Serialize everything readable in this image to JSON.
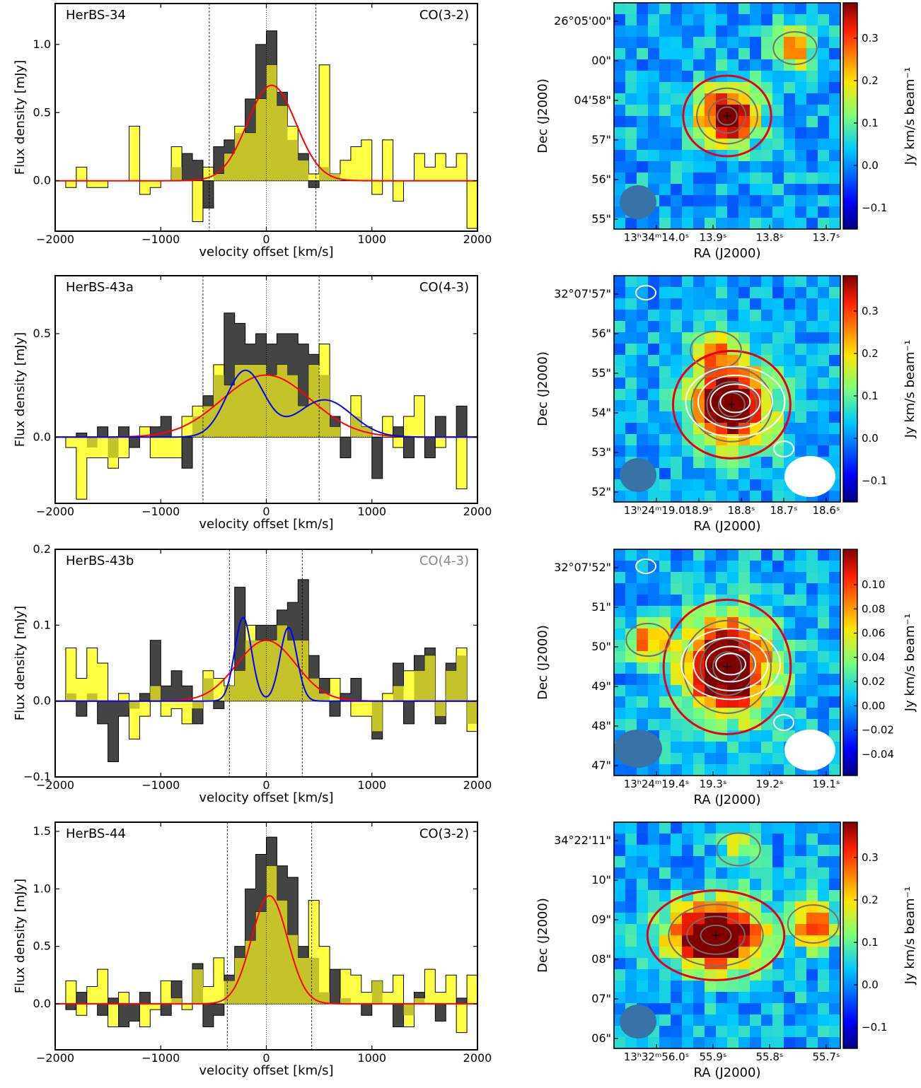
{
  "xlabel": "velocity offset [km/s]",
  "ylabel": "Flux density [mJy]",
  "map_xlabel": "RA (J2000)",
  "map_ylabel": "Dec (J2000)",
  "cbar_label": "Jy km/s beam⁻¹",
  "colors": {
    "observed": "#444444",
    "fill": "#ffff44",
    "overlap": "#c4c42a",
    "single_fit": "#ff0000",
    "double_fit": "#0000ff",
    "map_contour": "#707070",
    "outer_contour": "#e3001b",
    "continuum_contour": "#ffffff"
  },
  "chart_data": [
    {
      "type": "line",
      "source": "HerBS-34",
      "line": "CO(3-2)",
      "line_color": "#000000",
      "xlim": [
        -2000,
        2000
      ],
      "ylim": [
        -0.37,
        1.3
      ],
      "xticks": [
        -2000,
        -1000,
        0,
        1000,
        2000
      ],
      "xtick_labels": [
        "−2000",
        "−1000",
        "0",
        "1000",
        "2000"
      ],
      "yticks": [
        0.0,
        0.5,
        1.0
      ],
      "ytick_labels": [
        "0.0",
        "0.5",
        "1.0"
      ],
      "vlines": [
        -540,
        0,
        470
      ],
      "single_fit": {
        "amp": 0.7,
        "mu": 50,
        "sigma": 230
      },
      "observed": {
        "x": [
          -2000,
          -1900,
          -1800,
          -1700,
          -1600,
          -1500,
          -1400,
          -1300,
          -1200,
          -1100,
          -1000,
          -900,
          -800,
          -700,
          -600,
          -500,
          -400,
          -300,
          -200,
          -100,
          0,
          100,
          200,
          300,
          400,
          500,
          600,
          700,
          800,
          900,
          1000,
          1100,
          1200,
          1300,
          1400,
          1500,
          1600,
          1700,
          1800,
          1900,
          2000
        ],
        "y": [
          0.0,
          0.0,
          0.0,
          0.0,
          0.0,
          0.0,
          0.0,
          0.0,
          0.0,
          0.0,
          0.0,
          0.1,
          0.2,
          0.15,
          -0.2,
          0.25,
          0.3,
          0.35,
          0.6,
          1.0,
          1.1,
          0.65,
          0.3,
          0.2,
          -0.05,
          0.1,
          0.05,
          0.0,
          0.0,
          0.0,
          0.0,
          0.0,
          0.0,
          0.0,
          0.0,
          0.0,
          0.0,
          0.0,
          0.0,
          0.0,
          0.0
        ]
      },
      "fill": {
        "x": [
          -2000,
          -1900,
          -1800,
          -1700,
          -1600,
          -1500,
          -1400,
          -1300,
          -1200,
          -1100,
          -1000,
          -900,
          -800,
          -700,
          -600,
          -500,
          -400,
          -300,
          -200,
          -100,
          0,
          100,
          200,
          300,
          400,
          500,
          600,
          700,
          800,
          900,
          1000,
          1100,
          1200,
          1300,
          1400,
          1500,
          1600,
          1700,
          1800,
          1900,
          2000
        ],
        "y": [
          0.0,
          -0.05,
          0.1,
          -0.05,
          -0.05,
          0.0,
          0.0,
          0.4,
          -0.1,
          -0.05,
          0.0,
          0.25,
          0.0,
          -0.3,
          0.1,
          0.05,
          0.2,
          0.4,
          0.35,
          0.6,
          0.85,
          0.55,
          0.4,
          0.15,
          0.05,
          0.85,
          0.05,
          0.15,
          0.25,
          0.3,
          -0.1,
          0.3,
          -0.15,
          0.0,
          0.2,
          0.1,
          0.2,
          0.1,
          0.2,
          -0.35,
          0.0
        ]
      },
      "map": {
        "yticks": [
          "26°05'00\"",
          "00\"",
          "04'58\"",
          "57\"",
          "56\"",
          "55\""
        ],
        "xticks": [
          "13ʰ34ᵐ14.0ˢ",
          "13.9ˢ",
          "13.8ˢ",
          "13.7ˢ"
        ],
        "cbar_ticks": [
          "0.3",
          "0.2",
          "0.1",
          "0.0",
          "−0.1"
        ],
        "white_beam": false,
        "white_contours": false
      }
    },
    {
      "type": "line",
      "source": "HerBS-43a",
      "line": "CO(4-3)",
      "line_color": "#000000",
      "xlim": [
        -2000,
        2000
      ],
      "ylim": [
        -0.32,
        0.78
      ],
      "xticks": [
        -2000,
        -1000,
        0,
        1000,
        2000
      ],
      "xtick_labels": [
        "−2000",
        "−1000",
        "0",
        "1000",
        "2000"
      ],
      "yticks": [
        0.0,
        0.5
      ],
      "ytick_labels": [
        "0.0",
        "0.5"
      ],
      "vlines": [
        -600,
        0,
        500
      ],
      "single_fit": {
        "amp": 0.3,
        "mu": 0,
        "sigma": 420
      },
      "double_fit": [
        {
          "amp": 0.32,
          "mu": -200,
          "sigma": 180
        },
        {
          "amp": 0.18,
          "mu": 550,
          "sigma": 260
        }
      ],
      "observed": {
        "x": [
          -2000,
          -1900,
          -1800,
          -1700,
          -1600,
          -1500,
          -1400,
          -1300,
          -1200,
          -1100,
          -1000,
          -900,
          -800,
          -700,
          -600,
          -500,
          -400,
          -300,
          -200,
          -100,
          0,
          100,
          200,
          300,
          400,
          500,
          600,
          700,
          800,
          900,
          1000,
          1100,
          1200,
          1300,
          1400,
          1500,
          1600,
          1700,
          1800,
          1900,
          2000
        ],
        "y": [
          0.0,
          0.0,
          0.02,
          -0.05,
          0.05,
          -0.1,
          0.05,
          -0.05,
          0.0,
          0.05,
          0.1,
          0.0,
          -0.15,
          0.1,
          0.2,
          0.3,
          0.6,
          0.55,
          0.45,
          0.5,
          0.45,
          0.5,
          0.5,
          0.45,
          0.4,
          0.3,
          0.1,
          -0.1,
          0.1,
          0.05,
          -0.2,
          0.0,
          0.05,
          -0.1,
          0.0,
          -0.1,
          0.1,
          0.0,
          0.15,
          0.0,
          0.0
        ]
      },
      "fill": {
        "x": [
          -2000,
          -1900,
          -1800,
          -1700,
          -1600,
          -1500,
          -1400,
          -1300,
          -1200,
          -1100,
          -1000,
          -900,
          -800,
          -700,
          -600,
          -500,
          -400,
          -300,
          -200,
          -100,
          0,
          100,
          200,
          300,
          400,
          500,
          600,
          700,
          800,
          900,
          1000,
          1100,
          1200,
          1300,
          1400,
          1500,
          1600,
          1700,
          1800,
          1900,
          2000
        ],
        "y": [
          0.0,
          -0.05,
          -0.3,
          -0.1,
          -0.1,
          -0.15,
          -0.1,
          0.0,
          0.05,
          -0.1,
          -0.1,
          -0.1,
          0.1,
          0.15,
          0.15,
          0.35,
          0.25,
          0.35,
          0.35,
          0.35,
          0.3,
          0.35,
          0.3,
          0.15,
          0.35,
          0.45,
          0.05,
          0.0,
          0.2,
          0.05,
          0.0,
          0.1,
          -0.05,
          0.1,
          0.2,
          0.0,
          -0.05,
          0.0,
          -0.25,
          0.0,
          0.0
        ]
      },
      "map": {
        "yticks": [
          "32°07'57\"",
          "56\"",
          "55\"",
          "54\"",
          "53\"",
          "52\""
        ],
        "xticks": [
          "13ʰ24ᵐ19.0ˢ",
          "18.9ˢ",
          "18.8ˢ",
          "18.7ˢ",
          "18.6ˢ"
        ],
        "cbar_ticks": [
          "0.3",
          "0.2",
          "0.1",
          "0.0",
          "−0.1"
        ],
        "white_beam": true,
        "white_contours": true
      }
    },
    {
      "type": "line",
      "source": "HerBS-43b",
      "line": "CO(4-3)",
      "line_color": "#888888",
      "xlim": [
        -2000,
        2000
      ],
      "ylim": [
        -0.1,
        0.2
      ],
      "xticks": [
        -2000,
        -1000,
        0,
        1000,
        2000
      ],
      "xtick_labels": [
        "−2000",
        "−1000",
        "0",
        "1000",
        "2000"
      ],
      "yticks": [
        -0.1,
        0.0,
        0.1,
        0.2
      ],
      "ytick_labels": [
        "−0.1",
        "0.0",
        "0.1",
        "0.2"
      ],
      "vlines": [
        -350,
        0,
        340
      ],
      "single_fit": {
        "amp": 0.08,
        "mu": 0,
        "sigma": 280
      },
      "double_fit": [
        {
          "amp": 0.11,
          "mu": -220,
          "sigma": 80
        },
        {
          "amp": 0.097,
          "mu": 210,
          "sigma": 80
        }
      ],
      "observed": {
        "x": [
          -2000,
          -1900,
          -1800,
          -1700,
          -1600,
          -1500,
          -1400,
          -1300,
          -1200,
          -1100,
          -1000,
          -900,
          -800,
          -700,
          -600,
          -500,
          -400,
          -300,
          -200,
          -100,
          0,
          100,
          200,
          300,
          400,
          500,
          600,
          700,
          800,
          900,
          1000,
          1100,
          1200,
          1300,
          1400,
          1500,
          1600,
          1700,
          1800,
          1900,
          2000
        ],
        "y": [
          0.0,
          0.01,
          -0.02,
          0.01,
          -0.03,
          -0.08,
          -0.02,
          -0.01,
          0.01,
          0.08,
          0.02,
          0.04,
          0.02,
          -0.03,
          0.03,
          -0.01,
          0.02,
          0.15,
          0.08,
          0.1,
          0.1,
          0.12,
          0.13,
          0.16,
          0.06,
          0.03,
          -0.02,
          0.01,
          0.03,
          0.0,
          -0.05,
          0.0,
          0.05,
          -0.03,
          0.06,
          0.07,
          -0.03,
          0.05,
          0.06,
          -0.03,
          0.0
        ]
      },
      "fill": {
        "x": [
          -2000,
          -1900,
          -1800,
          -1700,
          -1600,
          -1500,
          -1400,
          -1300,
          -1200,
          -1100,
          -1000,
          -900,
          -800,
          -700,
          -600,
          -500,
          -400,
          -300,
          -200,
          -100,
          0,
          100,
          200,
          300,
          400,
          500,
          600,
          700,
          800,
          900,
          1000,
          1100,
          1200,
          1300,
          1400,
          1500,
          1600,
          1700,
          1800,
          1900,
          2000
        ],
        "y": [
          0.0,
          0.07,
          0.03,
          0.07,
          0.05,
          0.0,
          0.01,
          -0.05,
          -0.02,
          0.02,
          -0.02,
          -0.01,
          -0.03,
          -0.01,
          0.04,
          0.03,
          0.02,
          0.04,
          0.1,
          0.08,
          0.08,
          0.1,
          0.08,
          0.08,
          0.03,
          0.01,
          0.03,
          0.0,
          -0.02,
          -0.02,
          -0.04,
          0.01,
          0.02,
          0.04,
          0.04,
          0.06,
          -0.02,
          0.04,
          0.07,
          -0.04,
          0.0
        ]
      },
      "map": {
        "yticks": [
          "32°07'52\"",
          "51\"",
          "50\"",
          "49\"",
          "48\"",
          "47\""
        ],
        "xticks": [
          "13ʰ24ᵐ19.4ˢ",
          "19.3ˢ",
          "19.2ˢ",
          "19.1ˢ"
        ],
        "cbar_ticks": [
          "0.10",
          "0.08",
          "0.06",
          "0.04",
          "0.02",
          "0.00",
          "−0.02",
          "−0.04"
        ],
        "white_beam": true,
        "white_contours": true
      }
    },
    {
      "type": "line",
      "source": "HerBS-44",
      "line": "CO(3-2)",
      "line_color": "#000000",
      "xlim": [
        -2000,
        2000
      ],
      "ylim": [
        -0.4,
        1.58
      ],
      "xticks": [
        -2000,
        -1000,
        0,
        1000,
        2000
      ],
      "xtick_labels": [
        "−2000",
        "−1000",
        "0",
        "1000",
        "2000"
      ],
      "yticks": [
        0.0,
        0.5,
        1.0,
        1.5
      ],
      "ytick_labels": [
        "0.0",
        "0.5",
        "1.0",
        "1.5"
      ],
      "vlines": [
        -370,
        0,
        430
      ],
      "single_fit": {
        "amp": 0.94,
        "mu": 30,
        "sigma": 170
      },
      "observed": {
        "x": [
          -2000,
          -1900,
          -1800,
          -1700,
          -1600,
          -1500,
          -1400,
          -1300,
          -1200,
          -1100,
          -1000,
          -900,
          -800,
          -700,
          -600,
          -500,
          -400,
          -300,
          -200,
          -100,
          0,
          100,
          200,
          300,
          400,
          500,
          600,
          700,
          800,
          900,
          1000,
          1100,
          1200,
          1300,
          1400,
          1500,
          1600,
          1700,
          1800,
          1900,
          2000
        ],
        "y": [
          0.0,
          -0.05,
          0.1,
          0.0,
          -0.1,
          0.05,
          -0.2,
          -0.15,
          0.1,
          0.0,
          -0.1,
          0.2,
          0.0,
          0.35,
          -0.2,
          -0.1,
          0.25,
          0.5,
          1.0,
          1.3,
          1.45,
          1.2,
          1.1,
          0.5,
          0.4,
          0.1,
          0.3,
          0.05,
          0.0,
          -0.1,
          0.2,
          0.0,
          -0.2,
          -0.1,
          0.1,
          0.0,
          -0.15,
          0.0,
          0.05,
          0.0,
          0.0
        ]
      },
      "fill": {
        "x": [
          -2000,
          -1900,
          -1800,
          -1700,
          -1600,
          -1500,
          -1400,
          -1300,
          -1200,
          -1100,
          -1000,
          -900,
          -800,
          -700,
          -600,
          -500,
          -400,
          -300,
          -200,
          -100,
          0,
          100,
          200,
          300,
          400,
          500,
          600,
          700,
          800,
          900,
          1000,
          1100,
          1200,
          1300,
          1400,
          1500,
          1600,
          1700,
          1800,
          1900,
          2000
        ],
        "y": [
          0.0,
          0.2,
          -0.1,
          0.15,
          0.3,
          -0.2,
          0.1,
          0.0,
          -0.2,
          -0.05,
          0.2,
          0.05,
          -0.05,
          0.3,
          0.15,
          0.4,
          0.2,
          0.4,
          0.55,
          0.8,
          1.2,
          0.9,
          0.6,
          0.4,
          0.9,
          0.5,
          0.0,
          0.3,
          0.25,
          0.1,
          0.2,
          0.1,
          0.25,
          -0.2,
          0.05,
          0.3,
          0.1,
          0.25,
          -0.25,
          0.25,
          0.0
        ]
      },
      "map": {
        "yticks": [
          "34°22'11\"",
          "10\"",
          "09\"",
          "08\"",
          "07\"",
          "06\""
        ],
        "xticks": [
          "13ʰ32ᵐ56.0ˢ",
          "55.9ˢ",
          "55.8ˢ",
          "55.7ˢ"
        ],
        "cbar_ticks": [
          "0.3",
          "0.2",
          "0.1",
          "0.0",
          "−0.1"
        ],
        "white_beam": false,
        "white_contours": false
      }
    }
  ]
}
